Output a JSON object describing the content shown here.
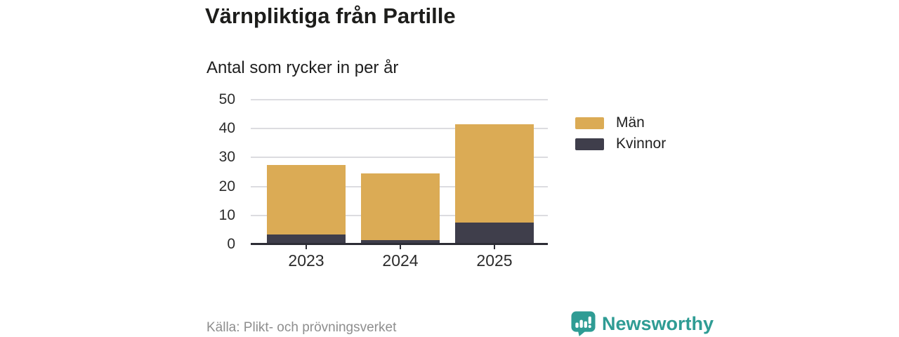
{
  "header": {
    "title": "Värnpliktiga från Partille",
    "subtitle": "Antal som rycker in per år"
  },
  "footer": {
    "source": "Källa: Plikt- och prövningsverket",
    "brand": "Newsworthy"
  },
  "colors": {
    "men": "#DBAB55",
    "women": "#3F3E4B",
    "brand_teal": "#2F9C94",
    "axis_line": "#2D2D35",
    "gridline": "#DCDCE0",
    "axis_text": "#2B2B2B",
    "source_text": "#8E8E8E",
    "background": "#FFFFFF"
  },
  "chart_data": {
    "type": "bar",
    "stacked": true,
    "title": "Värnpliktiga från Partille",
    "subtitle": "Antal som rycker in per år",
    "categories": [
      "2023",
      "2024",
      "2025"
    ],
    "series": [
      {
        "name": "Män",
        "color": "#DBAB55",
        "values": [
          24,
          23,
          34
        ]
      },
      {
        "name": "Kvinnor",
        "color": "#3F3E4B",
        "values": [
          3,
          1,
          7
        ]
      }
    ],
    "stack_order_bottom_to_top": [
      "Kvinnor",
      "Män"
    ],
    "totals": [
      27,
      24,
      41
    ],
    "yticks": [
      0,
      10,
      20,
      30,
      40,
      50
    ],
    "ylim": [
      0,
      50
    ],
    "xlabel": "",
    "ylabel": "",
    "grid": "horizontal",
    "legend_position": "right",
    "source": "Källa: Plikt- och prövningsverket"
  }
}
